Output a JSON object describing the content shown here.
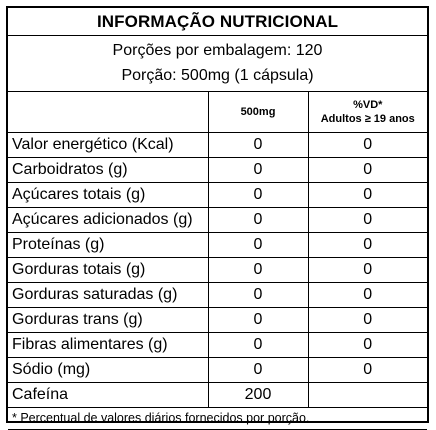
{
  "title": "INFORMAÇÃO NUTRICIONAL",
  "portions_per_package": "Porções por embalagem: 120",
  "portion": "Porção: 500mg (1 cápsula)",
  "columns": {
    "amount": "500mg",
    "dv_line1": "%VD*",
    "dv_line2": "Adultos ≥ 19 anos"
  },
  "rows": [
    {
      "name": "Valor energético (Kcal)",
      "amount": "0",
      "dv": "0"
    },
    {
      "name": "Carboidratos (g)",
      "amount": "0",
      "dv": "0"
    },
    {
      "name": "Açúcares totais (g)",
      "amount": "0",
      "dv": "0"
    },
    {
      "name": "Açúcares adicionados (g)",
      "amount": "0",
      "dv": "0"
    },
    {
      "name": "Proteínas (g)",
      "amount": "0",
      "dv": "0"
    },
    {
      "name": "Gorduras totais (g)",
      "amount": "0",
      "dv": "0"
    },
    {
      "name": "Gorduras saturadas (g)",
      "amount": "0",
      "dv": "0"
    },
    {
      "name": "Gorduras trans (g)",
      "amount": "0",
      "dv": "0"
    },
    {
      "name": "Fibras alimentares (g)",
      "amount": "0",
      "dv": "0"
    },
    {
      "name": "Sódio (mg)",
      "amount": "0",
      "dv": "0"
    },
    {
      "name": "Cafeína",
      "amount": "200",
      "dv": ""
    }
  ],
  "footnote": "* Percentual de valores diários fornecidos por porção."
}
